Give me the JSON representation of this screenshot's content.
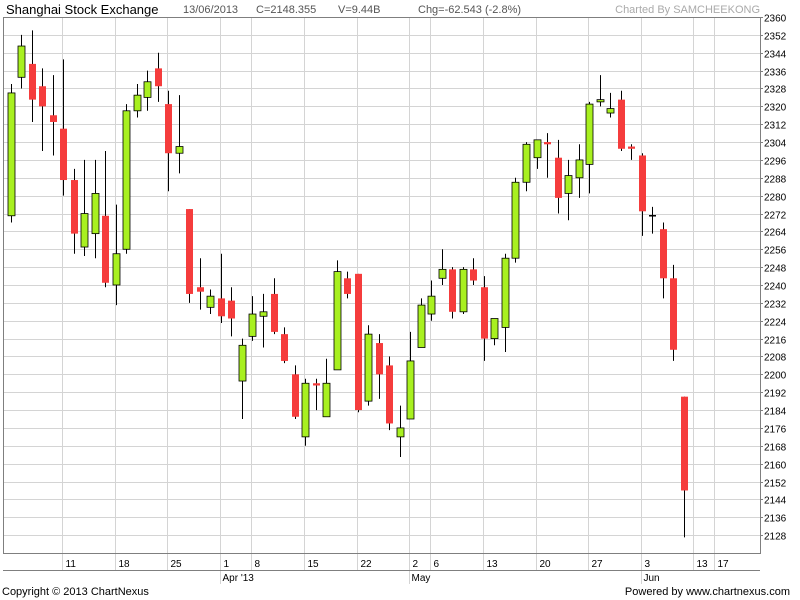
{
  "header": {
    "title": "Shanghai Stock Exchange",
    "date": "13/06/2013",
    "close": "C=2148.355",
    "volume": "V=9.44B",
    "change": "Chg=-62.543 (-2.8%)",
    "charted_by": "Charted By SAMCHEEKONG"
  },
  "footer": {
    "copyright": "Copyright © 2013 ChartNexus",
    "powered": "Powered by www.chartnexus.com"
  },
  "colors": {
    "up": "#a8f020",
    "down": "#f53c3c",
    "grid": "#d4d4d4",
    "frame": "#7f7f7f"
  },
  "chart_data": {
    "type": "candlestick",
    "ylim": [
      2120,
      2360
    ],
    "y_ticks": [
      2128,
      2136,
      2144,
      2152,
      2160,
      2168,
      2176,
      2184,
      2192,
      2200,
      2208,
      2216,
      2224,
      2232,
      2240,
      2248,
      2256,
      2264,
      2272,
      2280,
      2288,
      2296,
      2304,
      2312,
      2320,
      2328,
      2336,
      2344,
      2352,
      2360
    ],
    "grid": true,
    "x_ticks": [
      {
        "i": 5,
        "label": "11"
      },
      {
        "i": 10,
        "label": "18"
      },
      {
        "i": 15,
        "label": "25"
      },
      {
        "i": 20,
        "label": "1"
      },
      {
        "i": 23,
        "label": "8"
      },
      {
        "i": 28,
        "label": "15"
      },
      {
        "i": 33,
        "label": "22"
      },
      {
        "i": 38,
        "label": "2"
      },
      {
        "i": 40,
        "label": "6"
      },
      {
        "i": 45,
        "label": "13"
      },
      {
        "i": 50,
        "label": "20"
      },
      {
        "i": 55,
        "label": "27"
      },
      {
        "i": 60,
        "label": "3"
      },
      {
        "i": 65,
        "label": "13"
      },
      {
        "i": 67,
        "label": "17"
      }
    ],
    "month_labels": [
      {
        "i": 20,
        "label": "Apr '13"
      },
      {
        "i": 38,
        "label": "May"
      },
      {
        "i": 60,
        "label": "Jun"
      }
    ],
    "candles": [
      {
        "o": 2271,
        "h": 2330,
        "l": 2268,
        "c": 2326
      },
      {
        "o": 2333,
        "h": 2352,
        "l": 2328,
        "c": 2347
      },
      {
        "o": 2339,
        "h": 2354,
        "l": 2313,
        "c": 2323
      },
      {
        "o": 2329,
        "h": 2337,
        "l": 2300,
        "c": 2320
      },
      {
        "o": 2316,
        "h": 2334,
        "l": 2298,
        "c": 2313
      },
      {
        "o": 2310,
        "h": 2341,
        "l": 2280,
        "c": 2287
      },
      {
        "o": 2287,
        "h": 2292,
        "l": 2254,
        "c": 2263
      },
      {
        "o": 2257,
        "h": 2296,
        "l": 2253,
        "c": 2272
      },
      {
        "o": 2263,
        "h": 2296,
        "l": 2252,
        "c": 2281
      },
      {
        "o": 2271,
        "h": 2300,
        "l": 2239,
        "c": 2241
      },
      {
        "o": 2240,
        "h": 2276,
        "l": 2231,
        "c": 2254
      },
      {
        "o": 2256,
        "h": 2321,
        "l": 2254,
        "c": 2318
      },
      {
        "o": 2318,
        "h": 2330,
        "l": 2315,
        "c": 2325
      },
      {
        "o": 2324,
        "h": 2336,
        "l": 2318,
        "c": 2331
      },
      {
        "o": 2337,
        "h": 2344,
        "l": 2322,
        "c": 2329
      },
      {
        "o": 2321,
        "h": 2327,
        "l": 2282,
        "c": 2299
      },
      {
        "o": 2299,
        "h": 2325,
        "l": 2290,
        "c": 2302
      },
      {
        "o": 2274,
        "h": 2274,
        "l": 2232,
        "c": 2236
      },
      {
        "o": 2239,
        "h": 2252,
        "l": 2229,
        "c": 2237
      },
      {
        "o": 2230,
        "h": 2238,
        "l": 2227,
        "c": 2235
      },
      {
        "o": 2234,
        "h": 2254,
        "l": 2223,
        "c": 2226
      },
      {
        "o": 2233,
        "h": 2239,
        "l": 2217,
        "c": 2225
      },
      {
        "o": 2197,
        "h": 2216,
        "l": 2180,
        "c": 2213
      },
      {
        "o": 2217,
        "h": 2235,
        "l": 2215,
        "c": 2227
      },
      {
        "o": 2226,
        "h": 2236,
        "l": 2212,
        "c": 2228
      },
      {
        "o": 2236,
        "h": 2243,
        "l": 2218,
        "c": 2219
      },
      {
        "o": 2218,
        "h": 2221,
        "l": 2205,
        "c": 2206
      },
      {
        "o": 2200,
        "h": 2204,
        "l": 2180,
        "c": 2181
      },
      {
        "o": 2172,
        "h": 2198,
        "l": 2168,
        "c": 2196
      },
      {
        "o": 2196,
        "h": 2198,
        "l": 2184,
        "c": 2195
      },
      {
        "o": 2181,
        "h": 2207,
        "l": 2181,
        "c": 2196
      },
      {
        "o": 2202,
        "h": 2251,
        "l": 2202,
        "c": 2246
      },
      {
        "o": 2243,
        "h": 2246,
        "l": 2234,
        "c": 2236
      },
      {
        "o": 2245,
        "h": 2245,
        "l": 2183,
        "c": 2184
      },
      {
        "o": 2188,
        "h": 2222,
        "l": 2186,
        "c": 2218
      },
      {
        "o": 2214,
        "h": 2218,
        "l": 2189,
        "c": 2200
      },
      {
        "o": 2204,
        "h": 2208,
        "l": 2175,
        "c": 2178
      },
      {
        "o": 2172,
        "h": 2186,
        "l": 2163,
        "c": 2176
      },
      {
        "o": 2180,
        "h": 2219,
        "l": 2180,
        "c": 2206
      },
      {
        "o": 2212,
        "h": 2234,
        "l": 2212,
        "c": 2231
      },
      {
        "o": 2227,
        "h": 2242,
        "l": 2224,
        "c": 2235
      },
      {
        "o": 2243,
        "h": 2256,
        "l": 2240,
        "c": 2247
      },
      {
        "o": 2247,
        "h": 2248,
        "l": 2225,
        "c": 2228
      },
      {
        "o": 2228,
        "h": 2248,
        "l": 2227,
        "c": 2247
      },
      {
        "o": 2247,
        "h": 2252,
        "l": 2240,
        "c": 2242
      },
      {
        "o": 2239,
        "h": 2244,
        "l": 2206,
        "c": 2216
      },
      {
        "o": 2216,
        "h": 2225,
        "l": 2213,
        "c": 2225
      },
      {
        "o": 2221,
        "h": 2254,
        "l": 2210,
        "c": 2252
      },
      {
        "o": 2252,
        "h": 2288,
        "l": 2250,
        "c": 2286
      },
      {
        "o": 2286,
        "h": 2304,
        "l": 2282,
        "c": 2303
      },
      {
        "o": 2297,
        "h": 2305,
        "l": 2292,
        "c": 2305
      },
      {
        "o": 2304,
        "h": 2308,
        "l": 2288,
        "c": 2303
      },
      {
        "o": 2297,
        "h": 2305,
        "l": 2272,
        "c": 2279
      },
      {
        "o": 2281,
        "h": 2296,
        "l": 2269,
        "c": 2289
      },
      {
        "o": 2288,
        "h": 2303,
        "l": 2279,
        "c": 2296
      },
      {
        "o": 2294,
        "h": 2322,
        "l": 2281,
        "c": 2321
      },
      {
        "o": 2322,
        "h": 2334,
        "l": 2320,
        "c": 2323
      },
      {
        "o": 2317,
        "h": 2326,
        "l": 2315,
        "c": 2319
      },
      {
        "o": 2323,
        "h": 2327,
        "l": 2300,
        "c": 2301
      },
      {
        "o": 2302,
        "h": 2303,
        "l": 2296,
        "c": 2301
      },
      {
        "o": 2298,
        "h": 2299,
        "l": 2262,
        "c": 2273
      },
      {
        "o": 2271,
        "h": 2275,
        "l": 2263,
        "c": 2271
      },
      {
        "o": 2265,
        "h": 2268,
        "l": 2234,
        "c": 2243
      },
      {
        "o": 2243,
        "h": 2249,
        "l": 2206,
        "c": 2211
      },
      {
        "o": 2190,
        "h": 2190,
        "l": 2127,
        "c": 2148
      }
    ]
  }
}
